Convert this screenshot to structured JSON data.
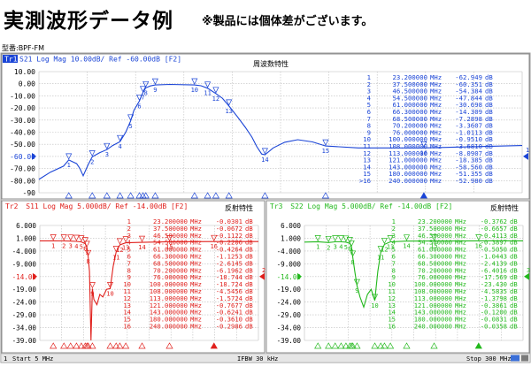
{
  "header": {
    "title": "実測波形データ例",
    "note": "※製品には個体差がございます。",
    "model": "型番:BPF-FM"
  },
  "top_chart": {
    "trace_id": "Tr1",
    "trace_label": "S21 Log Mag 10.00dB/ Ref -60.00dB [F2]",
    "panel_title": "周波数特性",
    "color": "#1a44d6",
    "ref_level": "-60.00",
    "right_marker": "1",
    "markers": [
      {
        "n": "1",
        "f": "23.200000",
        "v": "-62.949"
      },
      {
        "n": "2",
        "f": "37.500000",
        "v": "-60.351"
      },
      {
        "n": "3",
        "f": "46.500000",
        "v": "-54.384"
      },
      {
        "n": "4",
        "f": "54.500000",
        "v": "-47.844"
      },
      {
        "n": "5",
        "f": "61.000000",
        "v": "-30.698"
      },
      {
        "n": "6",
        "f": "66.300000",
        "v": "-14.309"
      },
      {
        "n": "7",
        "f": "68.500000",
        "v": "-7.2898"
      },
      {
        "n": "8",
        "f": "70.200000",
        "v": "-3.3607"
      },
      {
        "n": "9",
        "f": "76.000000",
        "v": "-1.0113"
      },
      {
        "n": "10",
        "f": "100.000000",
        "v": "-0.9510"
      },
      {
        "n": "11",
        "f": "108.000000",
        "v": "-3.6810"
      },
      {
        "n": "12",
        "f": "113.000000",
        "v": "-8.0907"
      },
      {
        "n": "13",
        "f": "121.000000",
        "v": "-18.385"
      },
      {
        "n": "14",
        "f": "143.000000",
        "v": "-58.560"
      },
      {
        "n": "15",
        "f": "180.000000",
        "v": "-51.355"
      },
      {
        "n": ">16",
        "f": "240.000000",
        "v": "-52.980"
      }
    ]
  },
  "bl_chart": {
    "trace_id": "Tr2",
    "trace_label": "S11 Log Mag 5.000dB/ Ref -14.00dB [F2]",
    "panel_title": "反射特性",
    "color": "#e0201c",
    "ref_level": "-14.00",
    "right_marker": "2",
    "markers": [
      {
        "n": "1",
        "f": "23.200000",
        "v": "-0.0301"
      },
      {
        "n": "2",
        "f": "37.500000",
        "v": "-0.0672"
      },
      {
        "n": "3",
        "f": "46.500000",
        "v": "-0.1122"
      },
      {
        "n": "4",
        "f": "54.500000",
        "v": "-0.2206"
      },
      {
        "n": "5",
        "f": "61.000000",
        "v": "-0.4264"
      },
      {
        "n": "6",
        "f": "66.300000",
        "v": "-1.1253"
      },
      {
        "n": "7",
        "f": "68.500000",
        "v": "-2.6145"
      },
      {
        "n": "8",
        "f": "70.200000",
        "v": "-6.1962"
      },
      {
        "n": "9",
        "f": "76.000000",
        "v": "-18.744"
      },
      {
        "n": "10",
        "f": "100.000000",
        "v": "-18.724"
      },
      {
        "n": "11",
        "f": "108.000000",
        "v": "-4.5456"
      },
      {
        "n": "12",
        "f": "113.000000",
        "v": "-1.5724"
      },
      {
        "n": "13",
        "f": "121.000000",
        "v": "-0.7677"
      },
      {
        "n": "14",
        "f": "143.000000",
        "v": "-0.6241"
      },
      {
        "n": "15",
        "f": "180.000000",
        "v": "-0.3610"
      },
      {
        "n": "16",
        "f": "240.000000",
        "v": "-0.2986"
      }
    ]
  },
  "br_chart": {
    "trace_id": "Tr3",
    "trace_label": "S22 Log Mag 5.000dB/ Ref -14.00dB [F2]",
    "panel_title": "反射特性",
    "color": "#22b81c",
    "ref_level": "-14.00",
    "right_marker": "3",
    "markers": [
      {
        "n": "1",
        "f": "23.200000",
        "v": "-0.3762"
      },
      {
        "n": "2",
        "f": "37.500000",
        "v": "-0.6657"
      },
      {
        "n": "3",
        "f": "46.500000",
        "v": "-0.4113"
      },
      {
        "n": "4",
        "f": "54.500000",
        "v": "-0.3897"
      },
      {
        "n": "5",
        "f": "61.000000",
        "v": "-0.5050"
      },
      {
        "n": "6",
        "f": "66.300000",
        "v": "-1.0443"
      },
      {
        "n": "7",
        "f": "68.500000",
        "v": "-2.4139"
      },
      {
        "n": "8",
        "f": "70.200000",
        "v": "-6.4016"
      },
      {
        "n": "9",
        "f": "76.000000",
        "v": "-17.569"
      },
      {
        "n": "10",
        "f": "100.000000",
        "v": "-23.430"
      },
      {
        "n": "11",
        "f": "108.000000",
        "v": "-4.5835"
      },
      {
        "n": "12",
        "f": "113.000000",
        "v": "-1.3798"
      },
      {
        "n": "13",
        "f": "121.000000",
        "v": "-0.3861"
      },
      {
        "n": "14",
        "f": "143.000000",
        "v": "-0.1200"
      },
      {
        "n": "15",
        "f": "180.000000",
        "v": "-0.0831"
      },
      {
        "n": "16",
        "f": "240.000000",
        "v": "-0.0358"
      }
    ]
  },
  "footer": {
    "channel": "1",
    "start": "Start 5 MHz",
    "ifbw": "IFBW 30 kHz",
    "stop": "Stop 300 MHz"
  },
  "chart_data": [
    {
      "type": "line",
      "title": "周波数特性",
      "ylabel": "S21 Log Mag (dB)",
      "xlim": [
        5,
        300
      ],
      "ylim": [
        -90,
        10
      ],
      "yticks": [
        "10.00",
        "0.00",
        "-10.00",
        "-20.00",
        "-30.00",
        "-40.00",
        "-50.00",
        "-60.00",
        "-70.00",
        "-80.00",
        "-90"
      ],
      "grid": true,
      "series": [
        {
          "name": "S21",
          "x": [
            5,
            12,
            20,
            23.2,
            28,
            30,
            32,
            35,
            37.5,
            42,
            46.5,
            50,
            54.5,
            58,
            61,
            63,
            66.3,
            68.5,
            70.2,
            73,
            76,
            85,
            100,
            104,
            108,
            113,
            117,
            121,
            126,
            131,
            135,
            138,
            141,
            143,
            148,
            155,
            163,
            172,
            180,
            200,
            220,
            240,
            270,
            300
          ],
          "y": [
            -79,
            -73,
            -68,
            -62.9,
            -66,
            -70,
            -76,
            -67,
            -60.4,
            -57,
            -54.4,
            -51,
            -47.8,
            -40,
            -30.7,
            -22,
            -14.3,
            -7.3,
            -3.4,
            -1.8,
            -1.0,
            -0.6,
            -1.0,
            -1.7,
            -3.7,
            -8.1,
            -12,
            -18.4,
            -27,
            -36,
            -44,
            -52,
            -58,
            -58.6,
            -53,
            -48.3,
            -46.2,
            -48,
            -51.4,
            -53,
            -53,
            -53,
            -52,
            -51
          ]
        }
      ]
    },
    {
      "type": "line",
      "title": "反射特性",
      "ylabel": "S11 Log Mag (dB)",
      "xlim": [
        5,
        300
      ],
      "ylim": [
        -39,
        6
      ],
      "yticks": [
        "6.000",
        "1.000",
        "-4.000",
        "-9.000",
        "-14.00",
        "-19.00",
        "-24.00",
        "-29.00",
        "-34.00",
        "-39.00"
      ],
      "grid": true,
      "series": [
        {
          "name": "S11",
          "x": [
            5,
            23.2,
            37.5,
            46.5,
            54.5,
            61,
            63,
            66.3,
            68.5,
            70.2,
            72,
            74,
            76,
            78,
            82,
            86,
            90,
            95,
            100,
            104,
            108,
            113,
            121,
            143,
            180,
            240,
            300
          ],
          "y": [
            -0.03,
            -0.03,
            -0.07,
            -0.11,
            -0.22,
            -0.43,
            -0.7,
            -1.13,
            -2.6,
            -6.2,
            -12,
            -39,
            -18.7,
            -23,
            -25,
            -21,
            -22,
            -19,
            -18.7,
            -10,
            -4.5,
            -1.6,
            -0.77,
            -0.62,
            -0.36,
            -0.3,
            -0.3
          ]
        }
      ]
    },
    {
      "type": "line",
      "title": "反射特性",
      "ylabel": "S22 Log Mag (dB)",
      "xlim": [
        5,
        300
      ],
      "ylim": [
        -39,
        6
      ],
      "yticks": [
        "6.000",
        "1.000",
        "-4.000",
        "-9.000",
        "-14.00",
        "-19.00",
        "-24.00",
        "-29.00",
        "-34.00",
        "-39.00"
      ],
      "grid": true,
      "series": [
        {
          "name": "S22",
          "x": [
            5,
            23.2,
            37.5,
            46.5,
            54.5,
            61,
            66.3,
            68.5,
            70.2,
            73,
            76,
            80,
            85,
            90,
            95,
            100,
            104,
            108,
            113,
            121,
            143,
            180,
            240,
            300
          ],
          "y": [
            -0.5,
            -0.38,
            -0.67,
            -0.41,
            -0.39,
            -0.5,
            -1.04,
            -2.4,
            -6.4,
            -12,
            -17.6,
            -22,
            -26,
            -21,
            -19,
            -23.4,
            -12,
            -4.6,
            -1.4,
            -0.39,
            -0.12,
            -0.08,
            -0.04,
            -0.03
          ]
        }
      ]
    }
  ]
}
